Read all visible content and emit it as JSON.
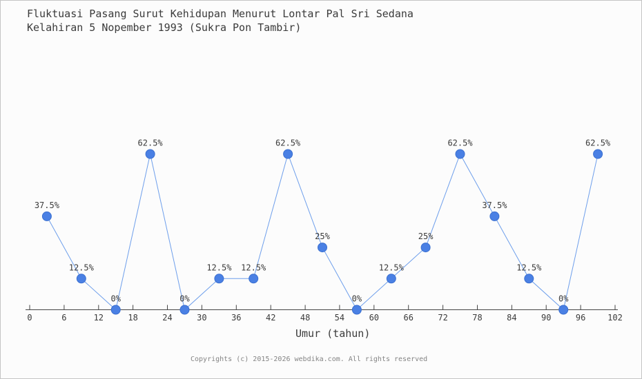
{
  "chart_data": {
    "type": "line",
    "title": "Fluktuasi Pasang Surut Kehidupan Menurut Lontar Pal Sri Sedana Kelahiran 5 Nopember 1993 (Sukra Pon Tambir)",
    "title_lines": [
      "Fluktuasi Pasang Surut Kehidupan Menurut Lontar Pal Sri Sedana",
      "Kelahiran 5 Nopember 1993 (Sukra Pon Tambir)"
    ],
    "xlabel": "Umur (tahun)",
    "ylabel": "",
    "x": [
      3,
      9,
      15,
      21,
      27,
      33,
      39,
      45,
      51,
      57,
      63,
      69,
      75,
      81,
      87,
      93,
      99
    ],
    "values": [
      37.5,
      12.5,
      0,
      62.5,
      0,
      12.5,
      12.5,
      62.5,
      25,
      0,
      12.5,
      25,
      62.5,
      37.5,
      12.5,
      0,
      62.5
    ],
    "point_labels": [
      "37.5%",
      "12.5%",
      "0%",
      "62.5%",
      "0%",
      "12.5%",
      "12.5%",
      "62.5%",
      "25%",
      "0%",
      "12.5%",
      "25%",
      "62.5%",
      "37.5%",
      "12.5%",
      "0%",
      "62.5%"
    ],
    "x_ticks": [
      0,
      6,
      12,
      18,
      24,
      30,
      36,
      42,
      48,
      54,
      60,
      66,
      72,
      78,
      84,
      90,
      96,
      102
    ],
    "xlim": [
      0,
      102
    ],
    "ylim": [
      0,
      70
    ],
    "grid": false,
    "legend": "none",
    "colors": {
      "marker": "#4a80e4",
      "marker_edge": "#3a6fd0",
      "line": "#6d9eeb",
      "axis": "#444444",
      "label": "#3a3a3a"
    }
  },
  "footer": {
    "copyright": "Copyrights (c) 2015-2026 webdika.com. All rights reserved"
  }
}
